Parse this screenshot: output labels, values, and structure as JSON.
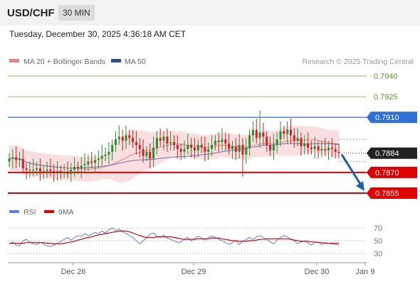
{
  "header": {
    "symbol": "USD/CHF",
    "timeframe": "30 MIN"
  },
  "timestamp": "Tuesday, December 30, 2025 4:36:18 AM CET",
  "legend": {
    "ma_bollinger": "MA 20 + Bollinger Bands",
    "ma50": "MA 50",
    "rsi": "RSI",
    "ma9": "9MA"
  },
  "copyright": "Research © 2025 Trading Central",
  "colors": {
    "green_level": "#8cc35a",
    "resistance_blue": "#2f6fd8",
    "support_red": "#e00000",
    "current_price": "#222222",
    "up_candle": "#2e8b2e",
    "down_candle": "#cc2222",
    "bollinger_fill": "#f7d4d4",
    "ma20": "#f08080",
    "ma50": "#6b73b8",
    "rsi_line": "#5a7fe0",
    "rsi_ma9": "#e00000",
    "arrow": "#1f5fa8"
  },
  "chart_data": [
    {
      "type": "candlestick",
      "title": "USD/CHF",
      "x_ticks": [
        "Dec 26",
        "Dec 29",
        "Dec 30",
        "Jan 9"
      ],
      "y_ticks": [
        "0.7940",
        "0.7925",
        "0.7910",
        "0.7884",
        "0.7870",
        "0.7855"
      ],
      "levels": [
        {
          "value": 0.794,
          "label": "0.7940",
          "kind": "target"
        },
        {
          "value": 0.7925,
          "label": "0.7925",
          "kind": "target"
        },
        {
          "value": 0.791,
          "label": "0.7910",
          "kind": "resistance"
        },
        {
          "value": 0.7884,
          "label": "0.7884",
          "kind": "current"
        },
        {
          "value": 0.787,
          "label": "0.7870",
          "kind": "support"
        },
        {
          "value": 0.7855,
          "label": "0.7855",
          "kind": "support"
        }
      ],
      "ylim": [
        0.785,
        0.7947
      ],
      "closes": [
        0.788,
        0.7881,
        0.7879,
        0.788,
        0.7873,
        0.7872,
        0.7872,
        0.7872,
        0.7873,
        0.7871,
        0.7871,
        0.7872,
        0.7871,
        0.787,
        0.7871,
        0.787,
        0.787,
        0.7869,
        0.7872,
        0.7874,
        0.7873,
        0.7875,
        0.7876,
        0.7878,
        0.7877,
        0.7879,
        0.788,
        0.7882,
        0.7883,
        0.7885,
        0.789,
        0.7894,
        0.7896,
        0.7893,
        0.7897,
        0.7895,
        0.7892,
        0.789,
        0.7887,
        0.7882,
        0.7885,
        0.788,
        0.7888,
        0.7895,
        0.7893,
        0.7896,
        0.7891,
        0.7892,
        0.789,
        0.7887,
        0.7885,
        0.7887,
        0.789,
        0.7888,
        0.7886,
        0.789,
        0.7888,
        0.7885,
        0.7887,
        0.789,
        0.7893,
        0.7892,
        0.7894,
        0.7891,
        0.7887,
        0.7889,
        0.7885,
        0.789,
        0.7883,
        0.7888,
        0.7897,
        0.7901,
        0.7895,
        0.7899,
        0.7896,
        0.789,
        0.7886,
        0.789,
        0.7894,
        0.79,
        0.7898,
        0.7901,
        0.7897,
        0.7893,
        0.7895,
        0.7889,
        0.7891,
        0.7888,
        0.7887,
        0.7889,
        0.7886,
        0.7887,
        0.7886,
        0.7888,
        0.7887,
        0.7885,
        0.7884
      ],
      "forecast": {
        "from": 0.7884,
        "to": 0.7855
      },
      "series": [
        {
          "name": "MA 20 + Bollinger Bands"
        },
        {
          "name": "MA 50"
        }
      ]
    },
    {
      "type": "line",
      "title": "RSI",
      "y_ticks": [
        "70",
        "50",
        "30"
      ],
      "ylim": [
        25,
        75
      ],
      "series": [
        {
          "name": "RSI",
          "values": [
            45,
            48,
            43,
            42,
            50,
            52,
            48,
            45,
            44,
            47,
            45,
            42,
            41,
            43,
            46,
            49,
            52,
            55,
            51,
            55,
            58,
            57,
            61,
            58,
            60,
            63,
            61,
            65,
            62,
            67,
            70,
            66,
            68,
            64,
            61,
            58,
            55,
            50,
            45,
            50,
            55,
            60,
            62,
            57,
            55,
            59,
            54,
            52,
            50,
            47,
            48,
            52,
            55,
            50,
            53,
            57,
            54,
            51,
            55,
            57,
            55,
            52,
            50,
            47,
            44,
            47,
            50,
            44,
            49,
            52,
            55,
            52,
            56,
            58,
            55,
            52,
            48,
            45,
            51,
            55,
            58,
            56,
            53,
            50,
            45,
            48,
            50,
            46,
            43,
            47,
            48,
            44,
            47,
            46,
            45,
            44,
            43
          ]
        },
        {
          "name": "9MA",
          "values": [
            46,
            46,
            46,
            46,
            46,
            47,
            47,
            47,
            47,
            47,
            47,
            46,
            46,
            45,
            45,
            45,
            46,
            47,
            48,
            49,
            51,
            52,
            54,
            55,
            56,
            58,
            59,
            60,
            61,
            62,
            63,
            64,
            65,
            65,
            65,
            64,
            62,
            60,
            58,
            56,
            55,
            55,
            55,
            56,
            56,
            56,
            56,
            56,
            55,
            54,
            53,
            52,
            52,
            52,
            52,
            53,
            53,
            53,
            53,
            54,
            54,
            54,
            53,
            52,
            51,
            50,
            50,
            49,
            49,
            49,
            50,
            50,
            51,
            52,
            52,
            53,
            53,
            53,
            53,
            53,
            53,
            53,
            52,
            51,
            50,
            49,
            49,
            49,
            48,
            48,
            47,
            47,
            46,
            46,
            46,
            46,
            46
          ]
        }
      ]
    }
  ]
}
